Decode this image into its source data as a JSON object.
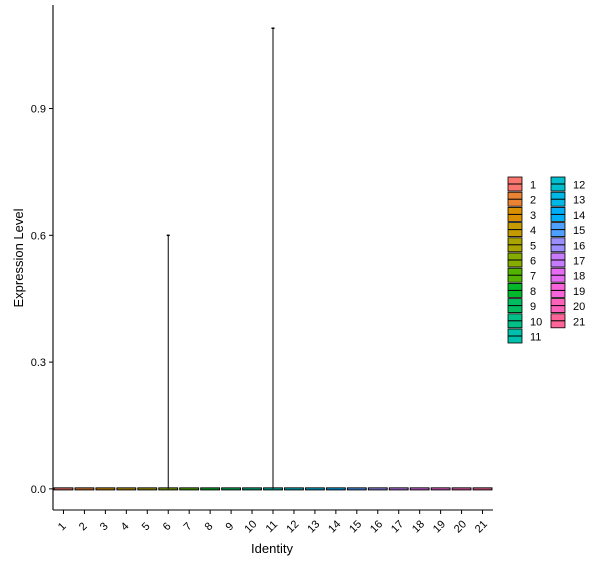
{
  "chart_data": {
    "type": "violin",
    "xlabel": "Identity",
    "ylabel": "Expression Level",
    "categories": [
      "1",
      "2",
      "3",
      "4",
      "5",
      "6",
      "7",
      "8",
      "9",
      "10",
      "11",
      "12",
      "13",
      "14",
      "15",
      "16",
      "17",
      "18",
      "19",
      "20",
      "21"
    ],
    "ylim": [
      -0.05,
      1.145
    ],
    "yticks": [
      0.0,
      0.3,
      0.6,
      0.9
    ],
    "ytick_labels": [
      "0.0",
      "0.3",
      "0.6",
      "0.9"
    ],
    "max_values": [
      0,
      0,
      0,
      0,
      0,
      0.6,
      0,
      0,
      0,
      0,
      1.09,
      0,
      0,
      0,
      0,
      0,
      0,
      0,
      0,
      0,
      0
    ],
    "legend": {
      "position": "right",
      "entries": [
        {
          "label": "1",
          "color": "#F8766D"
        },
        {
          "label": "2",
          "color": "#EB8335"
        },
        {
          "label": "3",
          "color": "#DA8F00"
        },
        {
          "label": "4",
          "color": "#C49A00"
        },
        {
          "label": "5",
          "color": "#A9A400"
        },
        {
          "label": "6",
          "color": "#86AC00"
        },
        {
          "label": "7",
          "color": "#53B400"
        },
        {
          "label": "8",
          "color": "#00B92A"
        },
        {
          "label": "9",
          "color": "#00BD5F"
        },
        {
          "label": "10",
          "color": "#00BF87"
        },
        {
          "label": "11",
          "color": "#00C0AB"
        },
        {
          "label": "12",
          "color": "#00BECC"
        },
        {
          "label": "13",
          "color": "#00B8E5"
        },
        {
          "label": "14",
          "color": "#00AEFA"
        },
        {
          "label": "15",
          "color": "#4DA0FF"
        },
        {
          "label": "16",
          "color": "#9B8FFF"
        },
        {
          "label": "17",
          "color": "#C77CFF"
        },
        {
          "label": "18",
          "color": "#E66CF1"
        },
        {
          "label": "19",
          "color": "#F763D8"
        },
        {
          "label": "20",
          "color": "#FD61BA"
        },
        {
          "label": "21",
          "color": "#FF6598"
        }
      ]
    }
  }
}
